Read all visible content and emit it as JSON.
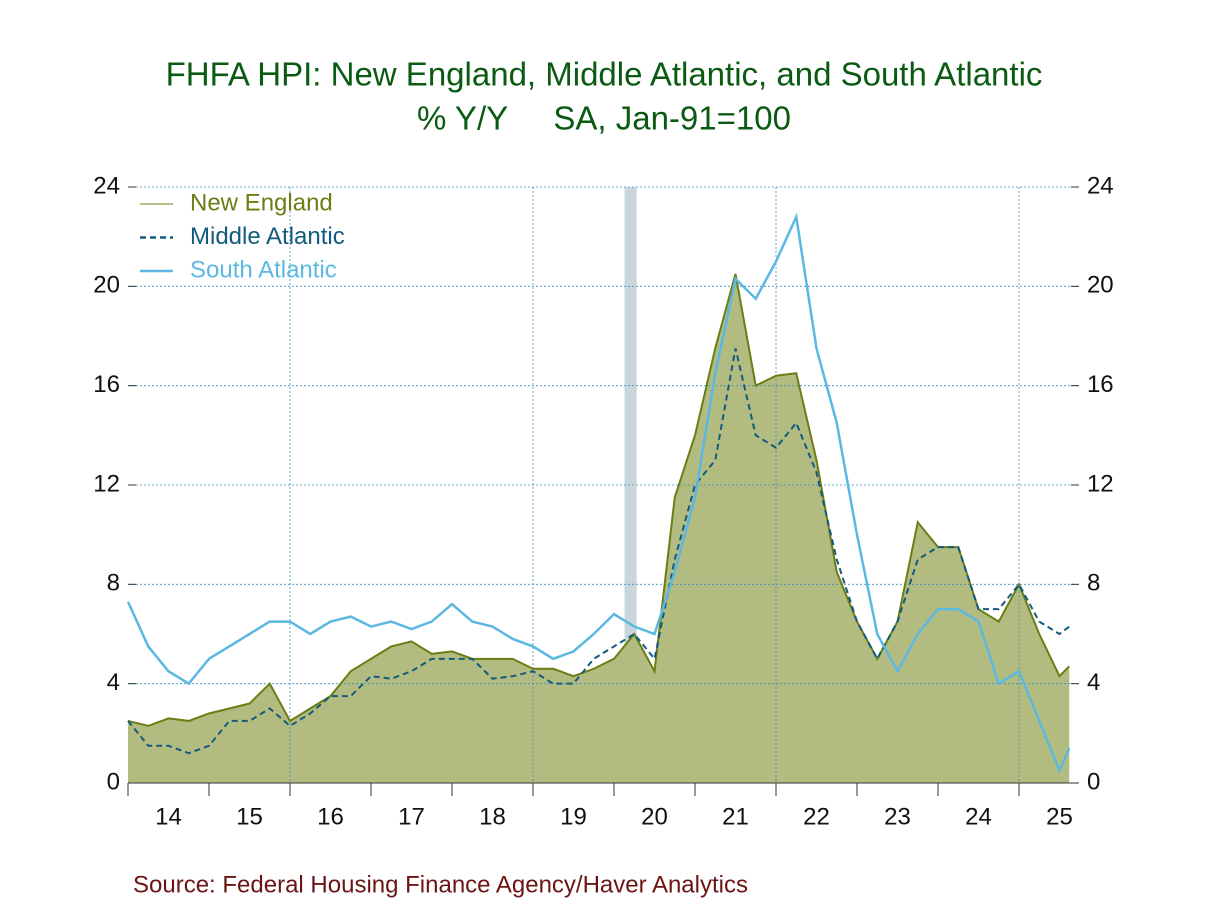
{
  "chart_data": {
    "type": "line",
    "title": "FHFA HPI: New England, Middle Atlantic, and South Atlantic",
    "subtitle": "% Y/Y     SA, Jan-91=100",
    "source": "Source:  Federal Housing Finance Agency/Haver Analytics",
    "x": [
      14,
      14.25,
      14.5,
      14.75,
      15,
      15.25,
      15.5,
      15.75,
      16,
      16.25,
      16.5,
      16.75,
      17,
      17.25,
      17.5,
      17.75,
      18,
      18.25,
      18.5,
      18.75,
      19,
      19.25,
      19.5,
      19.75,
      20,
      20.25,
      20.5,
      20.75,
      21,
      21.25,
      21.5,
      21.75,
      22,
      22.25,
      22.5,
      22.75,
      23,
      23.25,
      23.5,
      23.75,
      24,
      24.25,
      24.5,
      24.75,
      25,
      25.25,
      25.5,
      25.62
    ],
    "series": [
      {
        "name": "New England",
        "color": "#6b7d14",
        "fill": "#b3bc80",
        "style": "solid",
        "values": [
          2.5,
          2.3,
          2.6,
          2.5,
          2.8,
          3.0,
          3.2,
          4.0,
          2.5,
          3.0,
          3.5,
          4.5,
          5.0,
          5.5,
          5.7,
          5.2,
          5.3,
          5.0,
          5.0,
          5.0,
          4.6,
          4.6,
          4.3,
          4.6,
          5.0,
          6.0,
          4.5,
          11.5,
          14.0,
          17.5,
          20.5,
          16.0,
          16.4,
          16.5,
          13.0,
          8.5,
          6.5,
          5.0,
          6.5,
          10.5,
          9.5,
          9.5,
          7.0,
          6.5,
          8.0,
          6.0,
          4.3,
          4.7
        ]
      },
      {
        "name": "Middle Atlantic",
        "color": "#135a7e",
        "style": "dashed",
        "values": [
          2.5,
          1.5,
          1.5,
          1.2,
          1.5,
          2.5,
          2.5,
          3.0,
          2.3,
          2.8,
          3.5,
          3.5,
          4.3,
          4.2,
          4.5,
          5.0,
          5.0,
          5.0,
          4.2,
          4.3,
          4.5,
          4.0,
          4.0,
          5.0,
          5.5,
          6.0,
          5.0,
          9.0,
          12.0,
          13.0,
          17.5,
          14.0,
          13.5,
          14.5,
          12.5,
          9.0,
          6.5,
          5.0,
          6.5,
          9.0,
          9.5,
          9.5,
          7.0,
          7.0,
          8.0,
          6.5,
          6.0,
          6.3
        ]
      },
      {
        "name": "South Atlantic",
        "color": "#5bb8e2",
        "style": "solid",
        "values": [
          7.3,
          5.5,
          4.5,
          4.0,
          5.0,
          5.5,
          6.0,
          6.5,
          6.5,
          6.0,
          6.5,
          6.7,
          6.3,
          6.5,
          6.2,
          6.5,
          7.2,
          6.5,
          6.3,
          5.8,
          5.5,
          5.0,
          5.3,
          6.0,
          6.8,
          6.3,
          6.0,
          8.5,
          11.5,
          16.5,
          20.3,
          19.5,
          21.0,
          22.8,
          17.5,
          14.5,
          10.0,
          6.0,
          4.5,
          6.0,
          7.0,
          7.0,
          6.5,
          4.0,
          4.5,
          2.5,
          0.5,
          1.4
        ]
      }
    ],
    "xlim": [
      14,
      25.74
    ],
    "xticks": [
      {
        "value": 14.5,
        "label": "14"
      },
      {
        "value": 15.5,
        "label": "15"
      },
      {
        "value": 16.5,
        "label": "16"
      },
      {
        "value": 17.5,
        "label": "17"
      },
      {
        "value": 18.5,
        "label": "18"
      },
      {
        "value": 19.5,
        "label": "19"
      },
      {
        "value": 20.5,
        "label": "20"
      },
      {
        "value": 21.5,
        "label": "21"
      },
      {
        "value": 22.5,
        "label": "22"
      },
      {
        "value": 23.5,
        "label": "23"
      },
      {
        "value": 24.5,
        "label": "24"
      },
      {
        "value": 25.5,
        "label": "25"
      }
    ],
    "xtick_marks": [
      14,
      15,
      16,
      17,
      18,
      19,
      20,
      21,
      22,
      23,
      24,
      25
    ],
    "xgrid": [
      16,
      19,
      22,
      25
    ],
    "ylim": [
      0,
      24
    ],
    "yticks": [
      0,
      4,
      8,
      12,
      16,
      20,
      24
    ],
    "y2lim": [
      0,
      24
    ],
    "y2ticks": [
      0,
      4,
      8,
      12,
      16,
      20,
      24
    ],
    "shaded_region": [
      20.13,
      20.28
    ],
    "shade_color": "#c9d6de",
    "grid": true,
    "legend": "upper-left"
  }
}
